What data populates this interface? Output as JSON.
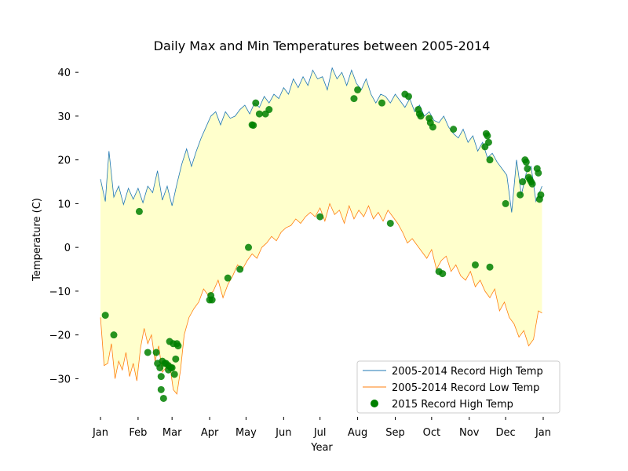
{
  "chart_data": {
    "type": "line",
    "title": "Daily Max and Min Temperatures between 2005-2014",
    "xlabel": "Year",
    "ylabel": "Temperature (C)",
    "xlim": [
      1,
      366
    ],
    "ylim": [
      -38,
      42
    ],
    "x_ticks": [
      {
        "label": "Jan",
        "day": 1
      },
      {
        "label": "Feb",
        "day": 32
      },
      {
        "label": "Mar",
        "day": 60
      },
      {
        "label": "Apr",
        "day": 91
      },
      {
        "label": "May",
        "day": 121
      },
      {
        "label": "Jun",
        "day": 152
      },
      {
        "label": "Jul",
        "day": 182
      },
      {
        "label": "Aug",
        "day": 213
      },
      {
        "label": "Sep",
        "day": 244
      },
      {
        "label": "Oct",
        "day": 274
      },
      {
        "label": "Nov",
        "day": 305
      },
      {
        "label": "Dec",
        "day": 335
      },
      {
        "label": "Jan",
        "day": 366
      }
    ],
    "y_ticks": [
      -30,
      -20,
      -10,
      0,
      10,
      20,
      30,
      40
    ],
    "grid": false,
    "legend_position": "lower-right",
    "fill_between": {
      "color": "#ffffcc"
    },
    "series": [
      {
        "name": "2005-2014 Record High Temp",
        "kind": "line",
        "color": "#1f77b4",
        "days": [
          1,
          5,
          8,
          12,
          16,
          20,
          24,
          28,
          32,
          36,
          40,
          44,
          48,
          52,
          56,
          60,
          64,
          68,
          72,
          76,
          80,
          84,
          88,
          92,
          96,
          100,
          104,
          108,
          112,
          116,
          120,
          124,
          128,
          132,
          136,
          140,
          144,
          148,
          152,
          156,
          160,
          164,
          168,
          172,
          176,
          180,
          184,
          188,
          192,
          196,
          200,
          204,
          208,
          212,
          216,
          220,
          224,
          228,
          232,
          236,
          240,
          244,
          248,
          252,
          256,
          260,
          264,
          268,
          272,
          276,
          280,
          284,
          288,
          292,
          296,
          300,
          304,
          308,
          312,
          316,
          320,
          324,
          328,
          332,
          336,
          340,
          344,
          348,
          352,
          356,
          360,
          365
        ],
        "values": [
          15.6,
          10.5,
          22.0,
          11.5,
          14.0,
          9.8,
          13.5,
          11.0,
          13.5,
          10.2,
          14.0,
          12.5,
          17.5,
          10.8,
          14.0,
          9.5,
          14.5,
          19.0,
          22.5,
          18.5,
          22.0,
          25.0,
          27.5,
          30.0,
          31.0,
          28.0,
          31.0,
          29.5,
          30.0,
          31.5,
          32.5,
          30.5,
          33.0,
          32.0,
          34.5,
          33.0,
          35.0,
          34.0,
          36.5,
          35.0,
          38.5,
          36.5,
          39.0,
          37.0,
          40.5,
          38.5,
          39.0,
          36.0,
          41.0,
          38.5,
          40.0,
          37.0,
          40.5,
          37.5,
          36.0,
          38.5,
          35.0,
          33.0,
          35.0,
          34.5,
          33.0,
          35.0,
          33.5,
          32.0,
          34.0,
          31.0,
          32.5,
          30.0,
          31.0,
          29.0,
          28.5,
          30.0,
          27.5,
          26.0,
          25.0,
          27.0,
          24.0,
          25.5,
          22.0,
          24.0,
          20.5,
          21.5,
          19.5,
          18.0,
          16.5,
          8.0,
          20.0,
          12.0,
          17.0,
          18.5,
          10.5,
          14.0
        ]
      },
      {
        "name": "2005-2014 Record Low Temp",
        "kind": "line",
        "color": "#ff7f0e",
        "days": [
          1,
          4,
          7,
          10,
          13,
          16,
          19,
          22,
          25,
          28,
          31,
          34,
          37,
          40,
          43,
          46,
          49,
          52,
          55,
          58,
          61,
          64,
          67,
          70,
          74,
          78,
          82,
          86,
          90,
          94,
          98,
          102,
          106,
          110,
          114,
          118,
          122,
          126,
          130,
          134,
          138,
          142,
          146,
          150,
          154,
          158,
          162,
          166,
          170,
          174,
          178,
          182,
          186,
          190,
          194,
          198,
          202,
          206,
          210,
          214,
          218,
          222,
          226,
          230,
          234,
          238,
          242,
          246,
          250,
          254,
          258,
          262,
          266,
          270,
          274,
          278,
          282,
          286,
          290,
          294,
          298,
          302,
          306,
          310,
          314,
          318,
          322,
          326,
          330,
          334,
          338,
          342,
          346,
          350,
          354,
          358,
          362,
          365
        ],
        "values": [
          -16.0,
          -27.0,
          -26.5,
          -22.0,
          -30.0,
          -26.0,
          -28.0,
          -24.0,
          -29.5,
          -26.5,
          -30.5,
          -23.0,
          -18.5,
          -22.0,
          -20.0,
          -26.0,
          -22.5,
          -28.5,
          -27.5,
          -26.5,
          -32.5,
          -33.5,
          -28.0,
          -20.0,
          -16.0,
          -14.0,
          -12.5,
          -9.5,
          -11.0,
          -10.0,
          -7.5,
          -11.5,
          -8.5,
          -6.5,
          -4.0,
          -5.0,
          -3.0,
          -1.5,
          -2.5,
          0.0,
          1.0,
          2.5,
          1.5,
          3.5,
          4.5,
          5.0,
          6.5,
          5.5,
          7.0,
          8.0,
          7.0,
          9.0,
          6.0,
          10.0,
          7.5,
          8.5,
          5.5,
          9.5,
          6.5,
          8.5,
          7.0,
          9.5,
          6.5,
          8.0,
          6.0,
          8.5,
          7.0,
          5.5,
          3.5,
          1.0,
          2.0,
          0.5,
          -1.0,
          -2.5,
          -0.5,
          -5.0,
          -3.0,
          -2.0,
          -5.5,
          -4.0,
          -6.5,
          -7.5,
          -5.5,
          -9.0,
          -7.5,
          -10.0,
          -11.5,
          -9.5,
          -14.5,
          -12.5,
          -16.0,
          -17.5,
          -20.5,
          -19.0,
          -22.5,
          -21.0,
          -14.5,
          -15.0
        ]
      },
      {
        "name": "2015 Record High Temp",
        "kind": "scatter",
        "color": "#008000",
        "days": [
          5,
          12,
          33,
          40,
          47,
          50,
          48,
          52,
          54,
          51,
          57,
          58,
          59,
          60,
          61,
          63,
          64,
          65,
          51,
          53,
          55,
          57,
          62,
          92,
          91,
          93,
          106,
          116,
          123,
          127,
          126,
          129,
          132,
          137,
          140,
          182,
          210,
          213,
          233,
          240,
          252,
          255,
          263,
          264,
          265,
          272,
          273,
          275,
          280,
          283,
          292,
          310,
          318,
          319,
          320,
          321,
          322,
          322,
          335,
          347,
          349,
          351,
          352,
          353,
          354,
          355,
          356,
          357,
          361,
          362,
          363,
          364
        ],
        "values": [
          -15.5,
          -20.0,
          8.2,
          -24.0,
          -24.0,
          -27.5,
          -26.5,
          -26.0,
          -26.5,
          -29.5,
          -27.0,
          -21.5,
          -27.5,
          -27.5,
          -22.0,
          -25.5,
          -22.0,
          -22.5,
          -32.5,
          -34.5,
          -26.5,
          -28.0,
          -29.0,
          -11.0,
          -12.0,
          -12.0,
          -7.0,
          -5.0,
          0.0,
          27.9,
          28.0,
          33.0,
          30.5,
          30.5,
          31.5,
          7.0,
          34.0,
          36.0,
          33.0,
          5.5,
          35.0,
          34.5,
          31.5,
          30.5,
          30.0,
          29.5,
          28.5,
          27.5,
          -5.5,
          -6.0,
          27.0,
          -4.0,
          23.0,
          26.0,
          25.5,
          24.0,
          -4.5,
          20.0,
          10.0,
          12.0,
          15.0,
          20.0,
          19.5,
          18.0,
          16.0,
          15.5,
          15.0,
          14.5,
          18.0,
          17.0,
          11.0,
          12.0
        ]
      }
    ]
  }
}
